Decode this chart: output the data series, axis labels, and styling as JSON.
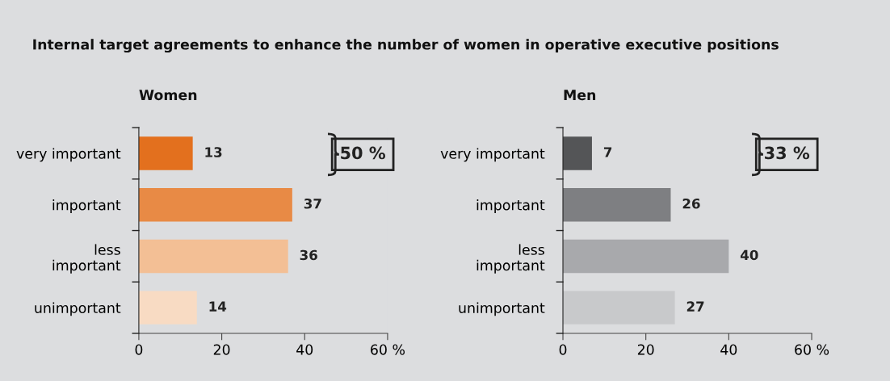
{
  "chart_data": [
    {
      "type": "bar",
      "orientation": "horizontal",
      "title": "Internal target agreements to enhance the number of women in operative executive positions",
      "subtitle": "Women",
      "categories": [
        "very important",
        "important",
        "less\nimportant",
        "unimportant"
      ],
      "values": [
        13,
        37,
        36,
        14
      ],
      "colors": [
        "#e3701e",
        "#e88a45",
        "#f3bf95",
        "#f8dbc3"
      ],
      "data_labels": true,
      "xlim": [
        0,
        60
      ],
      "xticks": [
        0,
        20,
        40,
        {
          "value": 60,
          "label": "60 %"
        }
      ],
      "annotations": [
        "50 %"
      ],
      "grid": false,
      "legend": false
    },
    {
      "type": "bar",
      "orientation": "horizontal",
      "subtitle": "Men",
      "categories": [
        "very important",
        "important",
        "less\nimportant",
        "unimportant"
      ],
      "values": [
        7,
        26,
        40,
        27
      ],
      "colors": [
        "#545557",
        "#7e7f82",
        "#a8a9ac",
        "#c8c9cb"
      ],
      "data_labels": true,
      "xlim": [
        0,
        60
      ],
      "xticks": [
        0,
        20,
        40,
        {
          "value": 60,
          "label": "60 %"
        }
      ],
      "annotations": [
        "33 %"
      ],
      "grid": false,
      "legend": false
    }
  ]
}
